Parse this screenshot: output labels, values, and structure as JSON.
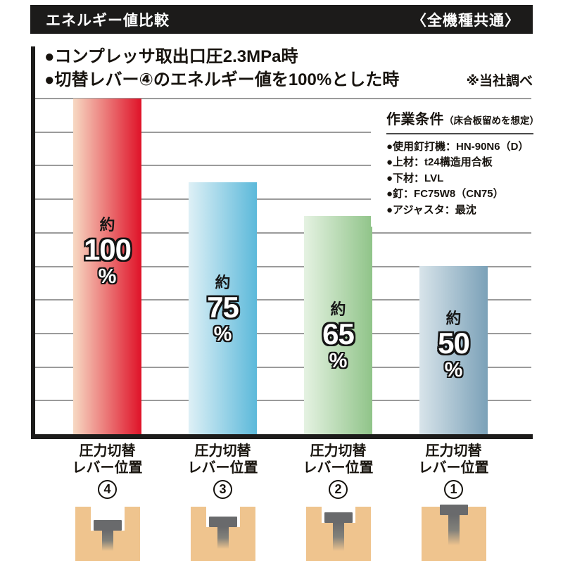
{
  "header": {
    "title": "エネルギー値比較",
    "badge": "〈全機種共通〉"
  },
  "notes": {
    "line1": "●コンプレッサ取出口圧2.3MPa時",
    "line2": "●切替レバー④のエネルギー値を100%とした時",
    "source": "※当社調べ"
  },
  "conditions": {
    "title": "作業条件",
    "title_note": "（床合板留めを想定）",
    "items": [
      "●使用釘打機：HN-90N6（D）",
      "●上材：t24構造用合板",
      "●下材：LVL",
      "●釘：FC75W8（CN75）",
      "●アジャスタ：最沈"
    ]
  },
  "chart_data": {
    "type": "bar",
    "title": "エネルギー値比較",
    "categories": [
      "圧力切替レバー位置④",
      "圧力切替レバー位置③",
      "圧力切替レバー位置②",
      "圧力切替レバー位置①"
    ],
    "values": [
      100,
      75,
      65,
      50
    ],
    "ylim": [
      0,
      100
    ],
    "grid_step": 10,
    "grid": "on",
    "legend": "none",
    "bars": [
      {
        "prefix": "約",
        "value": "100",
        "unit": "%",
        "cat_line1": "圧力切替",
        "cat_line2": "レバー位置",
        "lever": "4",
        "color_left": "#f7d9c3",
        "color_right": "#df1228"
      },
      {
        "prefix": "約",
        "value": "75",
        "unit": "%",
        "cat_line1": "圧力切替",
        "cat_line2": "レバー位置",
        "lever": "3",
        "color_left": "#def0f6",
        "color_right": "#5cb9da"
      },
      {
        "prefix": "約",
        "value": "65",
        "unit": "%",
        "cat_line1": "圧力切替",
        "cat_line2": "レバー位置",
        "lever": "2",
        "color_left": "#e5f2e2",
        "color_right": "#90c489"
      },
      {
        "prefix": "約",
        "value": "50",
        "unit": "%",
        "cat_line1": "圧力切替",
        "cat_line2": "レバー位置",
        "lever": "1",
        "color_left": "#d8e4ea",
        "color_right": "#7ba1b8"
      }
    ]
  },
  "colors": {
    "header_bg": "#1c1b1a",
    "axis": "#1c1b1a",
    "gridline": "#9b9b9b",
    "wood": "#efc48e",
    "nail": "#696a6c"
  }
}
